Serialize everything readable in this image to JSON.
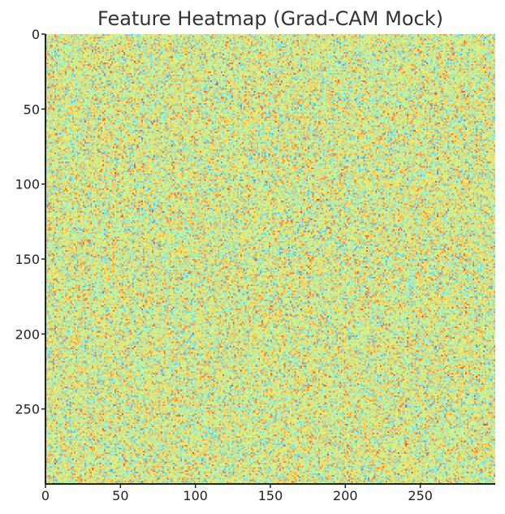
{
  "chart_data": {
    "type": "heatmap",
    "title": "Feature Heatmap (Grad-CAM Mock)",
    "xlabel": "",
    "ylabel": "",
    "rows": 300,
    "cols": 300,
    "xlim": [
      0,
      300
    ],
    "ylim": [
      300,
      0
    ],
    "y_origin": "top",
    "xticks": [
      0,
      50,
      100,
      150,
      200,
      250
    ],
    "yticks": [
      0,
      50,
      100,
      150,
      200,
      250
    ],
    "grid": false,
    "value_range": [
      0,
      1
    ],
    "distribution": "random noise with fine-grained speckle",
    "colormap": "jet",
    "colormap_stops": [
      "#3377ff",
      "#55ccff",
      "#8ff0dd",
      "#ddf77a",
      "#ffcc55",
      "#ff7a33",
      "#ee3322"
    ],
    "colors": {
      "axis": "#222222",
      "title": "#333333",
      "background": "#ffffff"
    }
  }
}
